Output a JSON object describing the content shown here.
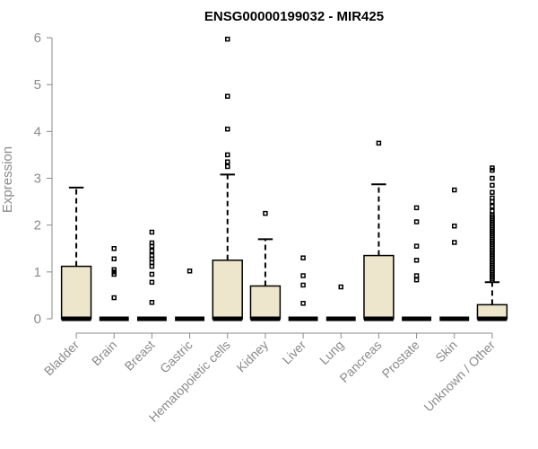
{
  "chart_data": {
    "type": "boxplot",
    "title": "ENSG00000199032 - MIR425",
    "ylabel": "Expression",
    "xlabel": "",
    "ylim": [
      0,
      6
    ],
    "yticks": [
      0,
      1,
      2,
      3,
      4,
      5,
      6
    ],
    "box_color": "#ede6cc",
    "categories": [
      "Bladder",
      "Brain",
      "Breast",
      "Gastric",
      "Hematopoietic cells",
      "Kidney",
      "Liver",
      "Lung",
      "Pancreas",
      "Prostate",
      "Skin",
      "Unknown / Other"
    ],
    "boxes": [
      {
        "q1": 0,
        "median": 0,
        "q3": 1.12,
        "whisker_low": 0,
        "whisker_high": 2.8,
        "outliers": []
      },
      {
        "q1": 0,
        "median": 0,
        "q3": 0,
        "whisker_low": 0,
        "whisker_high": 0,
        "outliers": [
          0.45,
          0.95,
          1.0,
          1.05,
          1.28,
          1.5
        ]
      },
      {
        "q1": 0,
        "median": 0,
        "q3": 0,
        "whisker_low": 0,
        "whisker_high": 0,
        "outliers": [
          0.35,
          0.78,
          0.95,
          1.12,
          1.2,
          1.28,
          1.35,
          1.45,
          1.55,
          1.62,
          1.85
        ]
      },
      {
        "q1": 0,
        "median": 0,
        "q3": 0,
        "whisker_low": 0,
        "whisker_high": 0,
        "outliers": [
          1.02
        ]
      },
      {
        "q1": 0,
        "median": 0,
        "q3": 1.25,
        "whisker_low": 0,
        "whisker_high": 3.08,
        "outliers": [
          3.25,
          3.35,
          3.5,
          4.05,
          4.75,
          5.97
        ]
      },
      {
        "q1": 0,
        "median": 0,
        "q3": 0.7,
        "whisker_low": 0,
        "whisker_high": 1.7,
        "outliers": [
          2.25
        ]
      },
      {
        "q1": 0,
        "median": 0,
        "q3": 0,
        "whisker_low": 0,
        "whisker_high": 0,
        "outliers": [
          0.33,
          0.72,
          0.92,
          1.3
        ]
      },
      {
        "q1": 0,
        "median": 0,
        "q3": 0,
        "whisker_low": 0,
        "whisker_high": 0,
        "outliers": [
          0.68
        ]
      },
      {
        "q1": 0,
        "median": 0,
        "q3": 1.35,
        "whisker_low": 0,
        "whisker_high": 2.87,
        "outliers": [
          3.75
        ]
      },
      {
        "q1": 0,
        "median": 0,
        "q3": 0,
        "whisker_low": 0,
        "whisker_high": 0,
        "outliers": [
          0.83,
          0.92,
          1.25,
          1.55,
          2.07,
          2.37
        ]
      },
      {
        "q1": 0,
        "median": 0,
        "q3": 0,
        "whisker_low": 0,
        "whisker_high": 0,
        "outliers": [
          1.63,
          1.98,
          2.75
        ]
      },
      {
        "q1": 0,
        "median": 0,
        "q3": 0.3,
        "whisker_low": 0,
        "whisker_high": 0.78,
        "outliers": [
          0.82,
          0.86,
          0.9,
          0.94,
          0.98,
          1.02,
          1.06,
          1.1,
          1.14,
          1.18,
          1.22,
          1.26,
          1.3,
          1.34,
          1.38,
          1.42,
          1.46,
          1.5,
          1.54,
          1.58,
          1.62,
          1.66,
          1.7,
          1.74,
          1.78,
          1.82,
          1.86,
          1.9,
          1.94,
          1.98,
          2.02,
          2.06,
          2.1,
          2.14,
          2.18,
          2.22,
          2.3,
          2.4,
          2.5,
          2.58,
          2.7,
          2.85,
          3.0,
          3.17,
          3.22
        ]
      }
    ]
  }
}
